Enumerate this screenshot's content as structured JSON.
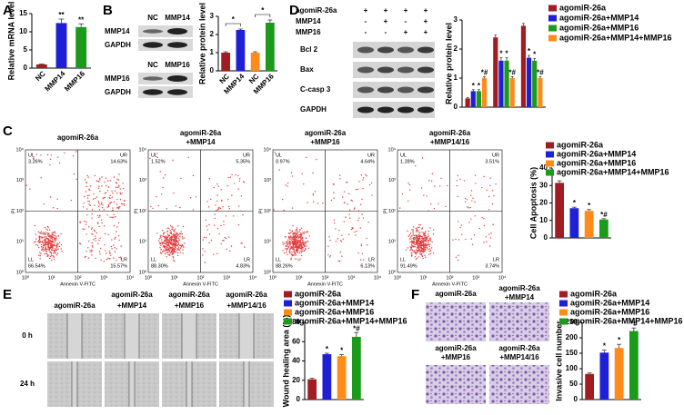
{
  "panel_labels": [
    "A",
    "B",
    "C",
    "D",
    "E",
    "F"
  ],
  "chart_data": [
    {
      "type": "bar",
      "ylabel": "Relative mRNA level",
      "categories": [
        "NC",
        "MMP14",
        "MMP16"
      ],
      "values": [
        1,
        12.4,
        11.3
      ],
      "errors": [
        0.1,
        1.1,
        0.9
      ],
      "colors": [
        "#a11d21",
        "#1f1fd6",
        "#1c9a1c"
      ],
      "annotations": [
        null,
        "**",
        "**"
      ],
      "ylim": [
        0,
        15
      ],
      "yticks": [
        0,
        5,
        10,
        15
      ]
    },
    {
      "type": "bar",
      "ylabel": "Relative protein level",
      "categories": [
        "NC",
        "MMP14",
        "NC",
        "MMP16"
      ],
      "values": [
        1,
        2.25,
        1,
        2.65
      ],
      "errors": [
        0.05,
        0.05,
        0.05,
        0.15
      ],
      "colors": [
        "#a11d21",
        "#1f1fd6",
        "#ff8c1a",
        "#1c9a1c"
      ],
      "annotations": [
        null,
        "*",
        null,
        "*"
      ],
      "ylim": [
        0,
        3
      ],
      "yticks": [
        0,
        1,
        2,
        3
      ]
    },
    {
      "type": "grouped_bar",
      "ylabel": "Relative protein level",
      "categories": [
        "Bcl 2",
        "Bax",
        "Caspase 3"
      ],
      "legend": "top-right",
      "ylim": [
        0,
        3
      ],
      "yticks": [
        0,
        1,
        2,
        3
      ],
      "series": [
        {
          "name": "agomiR-26a",
          "color": "#a11d21",
          "values": [
            0.3,
            2.4,
            2.8
          ],
          "errors": [
            0.03,
            0.08,
            0.08
          ],
          "annotations": [
            null,
            null,
            null
          ]
        },
        {
          "name": "agomiR-26a+MMP14",
          "color": "#1f1fd6",
          "values": [
            0.55,
            1.6,
            1.7
          ],
          "errors": [
            0.05,
            0.1,
            0.08
          ],
          "annotations": [
            "*",
            "*",
            "*"
          ]
        },
        {
          "name": "agomiR-26a+MMP16",
          "color": "#1c9a1c",
          "values": [
            0.55,
            1.6,
            1.6
          ],
          "errors": [
            0.05,
            0.1,
            0.08
          ],
          "annotations": [
            "*",
            "*",
            "*"
          ]
        },
        {
          "name": "agomiR-26a+MMP14+MMP16",
          "color": "#ff8c1a",
          "values": [
            1,
            1,
            1
          ],
          "errors": [
            0.05,
            0.05,
            0.05
          ],
          "annotations": [
            "*#",
            "*#",
            "*#"
          ]
        }
      ]
    },
    {
      "type": "bar",
      "ylabel": "Cell Apoptosis (%)",
      "legend": "top",
      "categories": [
        "agomiR-26a",
        "agomiR-26a+MMP14",
        "agomiR-26a+MMP16",
        "agomiR-26a+MMP14+MMP16"
      ],
      "values": [
        31.5,
        17,
        15.5,
        10.5
      ],
      "errors": [
        1.2,
        0.6,
        0.7,
        0.5
      ],
      "colors": [
        "#a11d21",
        "#1f1fd6",
        "#ff8c1a",
        "#1c9a1c"
      ],
      "annotations": [
        null,
        "*",
        "*",
        "*#"
      ],
      "ylim": [
        0,
        40
      ],
      "yticks": [
        0,
        10,
        20,
        30,
        40
      ]
    },
    {
      "type": "bar",
      "ylabel": "Wound healing area (%)",
      "legend": "top",
      "categories": [
        "agomiR-26a",
        "agomiR-26a+MMP14",
        "agomiR-26a+MMP16",
        "agomiR-26a+MMP14+MMP16"
      ],
      "values": [
        21,
        47,
        45,
        65
      ],
      "errors": [
        1,
        1,
        1.5,
        4.5
      ],
      "colors": [
        "#a11d21",
        "#1f1fd6",
        "#ff8c1a",
        "#1c9a1c"
      ],
      "annotations": [
        null,
        "*",
        "*",
        "*#"
      ],
      "ylim": [
        0,
        80
      ],
      "yticks": [
        0,
        20,
        40,
        60,
        80
      ]
    },
    {
      "type": "bar",
      "ylabel": "Invasive cell number",
      "legend": "top",
      "categories": [
        "agomiR-26a",
        "agomiR-26a+MMP14",
        "agomiR-26a+MMP16",
        "agomiR-26a+MMP14+MMP16"
      ],
      "values": [
        83,
        152,
        167,
        222
      ],
      "errors": [
        3,
        8,
        12,
        10
      ],
      "colors": [
        "#a11d21",
        "#1f1fd6",
        "#ff8c1a",
        "#1c9a1c"
      ],
      "annotations": [
        null,
        "*",
        "*",
        "*#"
      ],
      "ylim": [
        0,
        250
      ],
      "yticks": [
        0,
        50,
        100,
        150,
        200,
        250
      ]
    }
  ],
  "blot_b": [
    {
      "lanes": [
        "NC",
        "MMP14"
      ],
      "bands": [
        "MMP14",
        "GAPDH"
      ]
    },
    {
      "lanes": [
        "NC",
        "MMP16"
      ],
      "bands": [
        "MMP16",
        "GAPDH"
      ]
    }
  ],
  "blot_d": {
    "conditions": [
      {
        "name": "agomiR-26a",
        "signs": [
          "+",
          "+",
          "+",
          "+"
        ]
      },
      {
        "name": "MMP14",
        "signs": [
          "-",
          "+",
          "-",
          "+"
        ]
      },
      {
        "name": "MMP16",
        "signs": [
          "-",
          "-",
          "+",
          "+"
        ]
      }
    ],
    "bands": [
      "Bcl 2",
      "Bax",
      "C-casp 3",
      "GAPDH"
    ]
  },
  "flow": {
    "xlabel": "Annexin V-FITC",
    "ylabel": "PI",
    "ticks": [
      "10⁰",
      "10¹",
      "10²",
      "10³",
      "10⁴"
    ],
    "quadrant_names": [
      "UL",
      "UR",
      "LL",
      "LR"
    ],
    "plots": [
      {
        "title": [
          "agomiR-26a"
        ],
        "quadrants": [
          "3.26%",
          "14.63%",
          "66.54%",
          "15.57%"
        ]
      },
      {
        "title": [
          "agomiR-26a",
          "+MMP14"
        ],
        "quadrants": [
          "1.52%",
          "5.35%",
          "88.30%",
          "4.83%"
        ]
      },
      {
        "title": [
          "agomiR-26a",
          "+MMP16"
        ],
        "quadrants": [
          "0.97%",
          "4.64%",
          "88.26%",
          "6.13%"
        ]
      },
      {
        "title": [
          "agomiR-26a",
          "+MMP14/16"
        ],
        "quadrants": [
          "1.28%",
          "3.51%",
          "91.49%",
          "3.74%"
        ]
      }
    ]
  },
  "scratch": {
    "columns": [
      [
        "agomiR-26a"
      ],
      [
        "agomiR-26a",
        "+MMP14"
      ],
      [
        "agomiR-26a",
        "+MMP16"
      ],
      [
        "agomiR-26a",
        "+MMP14/16"
      ]
    ],
    "rows": [
      "0 h",
      "24 h"
    ]
  },
  "transwell": {
    "cells": [
      [
        "agomiR-26a"
      ],
      [
        "agomiR-26a",
        "+MMP14"
      ],
      [
        "agomiR-26a",
        "+MMP16"
      ],
      [
        "agomiR-26a",
        "+MMP14/16"
      ]
    ]
  }
}
